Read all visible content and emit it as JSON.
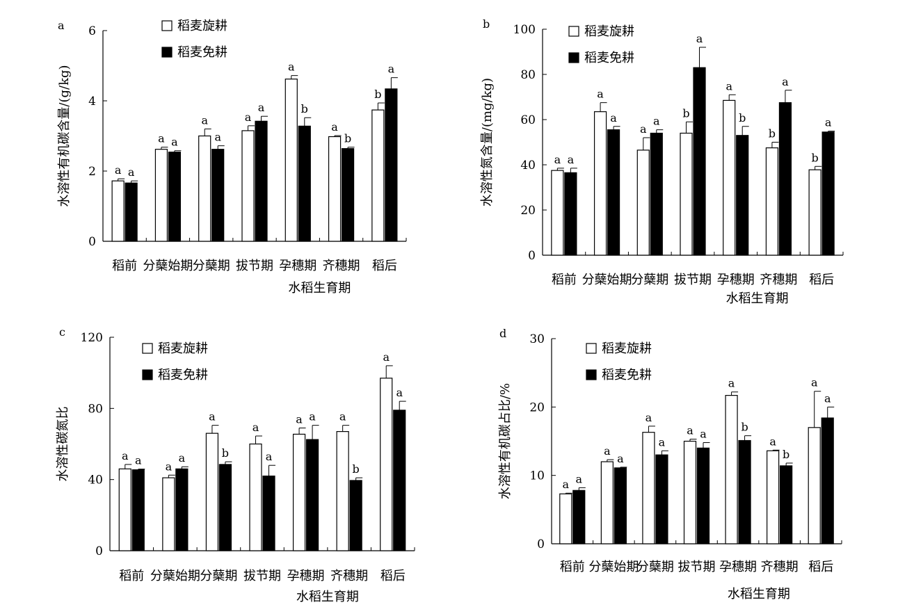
{
  "legend_items": [
    {
      "label": "稻麦旋耕",
      "fill": "#ffffff"
    },
    {
      "label": "稻麦免耕",
      "fill": "#000000"
    }
  ],
  "chart_data": [
    {
      "panel": "a",
      "type": "bar",
      "ylabel": "水溶性有机碳含量/(g/kg)",
      "xlabel": "水稻生育期",
      "ylim": [
        0,
        6
      ],
      "yticks": [
        0,
        2,
        4,
        6
      ],
      "categories": [
        "稻前",
        "分蘖始期",
        "分蘖期",
        "拔节期",
        "孕穗期",
        "齐穗期",
        "稻后"
      ],
      "series": [
        {
          "name": "稻麦旋耕",
          "values": [
            1.72,
            2.62,
            3.0,
            3.15,
            4.62,
            2.98,
            3.74
          ],
          "errors": [
            0.06,
            0.06,
            0.2,
            0.14,
            0.1,
            0.03,
            0.2
          ],
          "letters": [
            "a",
            "a",
            "a",
            "a",
            "a",
            "a",
            "b"
          ]
        },
        {
          "name": "稻麦免耕",
          "values": [
            1.66,
            2.54,
            2.62,
            3.42,
            3.28,
            2.64,
            4.34
          ],
          "errors": [
            0.06,
            0.04,
            0.1,
            0.14,
            0.24,
            0.04,
            0.32
          ],
          "letters": [
            "a",
            "a",
            "a",
            "a",
            "b",
            "b",
            "a"
          ]
        }
      ]
    },
    {
      "panel": "b",
      "type": "bar",
      "ylabel": "水溶性氮含量/(mg/kg)",
      "xlabel": "水稻生育期",
      "ylim": [
        0,
        100
      ],
      "yticks": [
        0,
        20,
        40,
        60,
        80,
        100
      ],
      "categories": [
        "稻前",
        "分蘖始期",
        "分蘖期",
        "拔节期",
        "孕穗期",
        "齐穗期",
        "稻后"
      ],
      "series": [
        {
          "name": "稻麦旋耕",
          "values": [
            37.5,
            63.5,
            46.5,
            54.0,
            68.5,
            47.5,
            37.8
          ],
          "errors": [
            1.0,
            4.0,
            5.5,
            5.0,
            2.5,
            2.5,
            1.5
          ],
          "letters": [
            "a",
            "a",
            "a",
            "b",
            "a",
            "b",
            "b"
          ]
        },
        {
          "name": "稻麦免耕",
          "values": [
            36.5,
            55.5,
            54.0,
            83.0,
            53.0,
            67.5,
            54.5
          ],
          "errors": [
            2.0,
            1.5,
            1.5,
            9.0,
            4.0,
            5.5,
            0.4
          ],
          "letters": [
            "a",
            "a",
            "a",
            "a",
            "b",
            "a",
            "a"
          ]
        }
      ]
    },
    {
      "panel": "c",
      "type": "bar",
      "ylabel": "水溶性碳氮比",
      "xlabel": "水稻生育期",
      "ylim": [
        0,
        120
      ],
      "yticks": [
        0,
        40,
        80,
        120
      ],
      "categories": [
        "稻前",
        "分蘖始期",
        "分蘖期",
        "拔节期",
        "孕穗期",
        "齐穗期",
        "稻后"
      ],
      "series": [
        {
          "name": "稻麦旋耕",
          "values": [
            46,
            41,
            66,
            60,
            65.5,
            67,
            97
          ],
          "errors": [
            2.5,
            1.5,
            4.5,
            4.5,
            3.5,
            3.5,
            7.0
          ],
          "letters": [
            "a",
            "a",
            "a",
            "a",
            "a",
            "a",
            "a"
          ]
        },
        {
          "name": "稻麦免耕",
          "values": [
            45.5,
            46,
            48.5,
            42,
            62.5,
            39.5,
            79
          ],
          "errors": [
            0.4,
            1.2,
            1.5,
            6.0,
            8.0,
            1.5,
            5.0
          ],
          "letters": [
            "a",
            "a",
            "b",
            "a",
            "a",
            "b",
            "a"
          ]
        }
      ]
    },
    {
      "panel": "d",
      "type": "bar",
      "ylabel": "水溶性有机碳占比/%",
      "xlabel": "水稻生育期",
      "ylim": [
        0,
        30
      ],
      "yticks": [
        0,
        10,
        20,
        30
      ],
      "categories": [
        "稻前",
        "分蘖始期",
        "分蘖期",
        "拔节期",
        "孕穗期",
        "齐穗期",
        "稻后"
      ],
      "series": [
        {
          "name": "稻麦旋耕",
          "values": [
            7.3,
            12.0,
            16.3,
            15.0,
            21.7,
            13.6,
            17.0
          ],
          "errors": [
            0.1,
            0.3,
            0.9,
            0.3,
            0.5,
            0.1,
            5.3
          ],
          "letters": [
            "a",
            "a",
            "a",
            "a",
            "a",
            "a",
            "a"
          ]
        },
        {
          "name": "稻麦免耕",
          "values": [
            7.8,
            11.1,
            13.0,
            14.0,
            15.1,
            11.4,
            18.4
          ],
          "errors": [
            0.4,
            0.1,
            0.6,
            0.8,
            0.7,
            0.4,
            1.6
          ],
          "letters": [
            "a",
            "a",
            "a",
            "a",
            "b",
            "b",
            "a"
          ]
        }
      ]
    }
  ]
}
